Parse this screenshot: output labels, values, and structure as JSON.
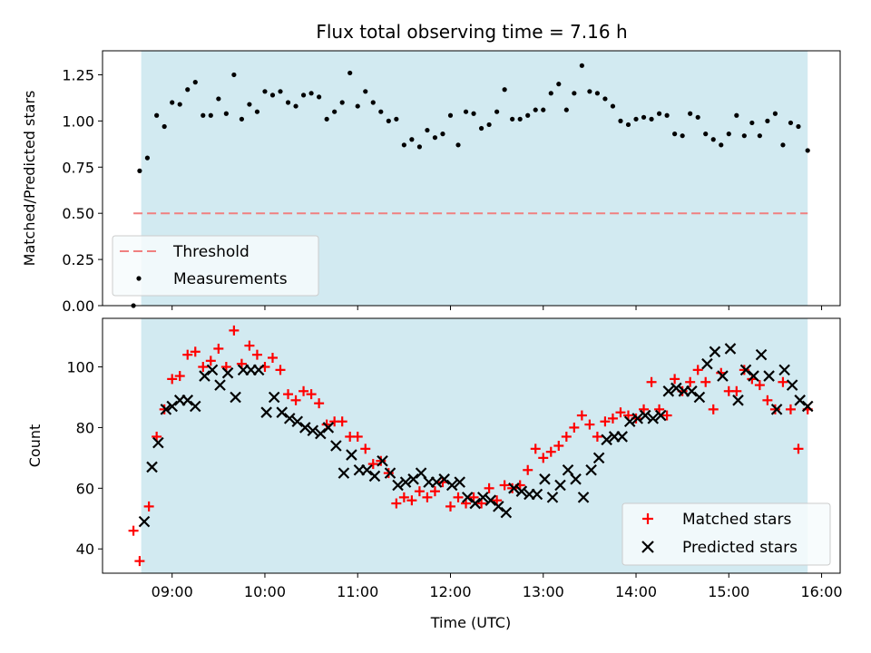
{
  "title": "Flux total observing time = 7.16 h",
  "colors": {
    "span_fill": "#add8e6",
    "threshold": "#f08080",
    "matched": "#ff0000",
    "predicted": "#000000",
    "measurement": "#000000"
  },
  "chart_data": [
    {
      "type": "scatter",
      "ylabel": "Matched/Predicted stars",
      "ylim": [
        0,
        1.38
      ],
      "yticks": [
        0,
        0.25,
        0.5,
        0.75,
        1.0,
        1.25
      ],
      "ytick_labels": [
        "0.00",
        "0.25",
        "0.50",
        "0.75",
        "1.00",
        "1.25"
      ],
      "observing_span": [
        "08:40",
        "15:51"
      ],
      "threshold": {
        "name": "Threshold",
        "value": 0.5,
        "x_start": "08:35",
        "x_end": "15:51"
      },
      "legend": {
        "placement": "lower-left",
        "entries": [
          "Threshold",
          "Measurements"
        ]
      },
      "series": [
        {
          "name": "Measurements",
          "x": [
            "08:35",
            "08:39",
            "08:44",
            "08:50",
            "08:55",
            "09:00",
            "09:05",
            "09:10",
            "09:15",
            "09:20",
            "09:25",
            "09:30",
            "09:35",
            "09:40",
            "09:45",
            "09:50",
            "09:55",
            "10:00",
            "10:05",
            "10:10",
            "10:15",
            "10:20",
            "10:25",
            "10:30",
            "10:35",
            "10:40",
            "10:45",
            "10:50",
            "10:55",
            "11:00",
            "11:05",
            "11:10",
            "11:15",
            "11:20",
            "11:25",
            "11:30",
            "11:35",
            "11:40",
            "11:45",
            "11:50",
            "11:55",
            "12:00",
            "12:05",
            "12:10",
            "12:15",
            "12:20",
            "12:25",
            "12:30",
            "12:35",
            "12:40",
            "12:45",
            "12:50",
            "12:55",
            "13:00",
            "13:05",
            "13:10",
            "13:15",
            "13:20",
            "13:25",
            "13:30",
            "13:35",
            "13:40",
            "13:45",
            "13:50",
            "13:55",
            "14:00",
            "14:05",
            "14:10",
            "14:15",
            "14:20",
            "14:25",
            "14:30",
            "14:35",
            "14:40",
            "14:45",
            "14:50",
            "14:55",
            "15:00",
            "15:05",
            "15:10",
            "15:15",
            "15:20",
            "15:25",
            "15:30",
            "15:35",
            "15:40",
            "15:45",
            "15:51"
          ],
          "y": [
            0.0,
            0.73,
            0.8,
            1.03,
            0.97,
            1.1,
            1.09,
            1.17,
            1.21,
            1.03,
            1.03,
            1.12,
            1.04,
            1.25,
            1.01,
            1.09,
            1.05,
            1.16,
            1.14,
            1.16,
            1.1,
            1.08,
            1.14,
            1.15,
            1.13,
            1.01,
            1.05,
            1.1,
            1.26,
            1.08,
            1.16,
            1.1,
            1.05,
            1.0,
            1.01,
            0.87,
            0.9,
            0.86,
            0.95,
            0.91,
            0.93,
            1.03,
            0.87,
            1.05,
            1.04,
            0.96,
            0.98,
            1.05,
            1.17,
            1.01,
            1.01,
            1.03,
            1.06,
            1.06,
            1.15,
            1.2,
            1.06,
            1.15,
            1.3,
            1.16,
            1.15,
            1.12,
            1.08,
            1.0,
            0.98,
            1.01,
            1.02,
            1.01,
            1.04,
            1.03,
            0.93,
            0.92,
            1.04,
            1.02,
            0.93,
            0.9,
            0.87,
            0.93,
            1.03,
            0.92,
            0.99,
            0.92,
            1.0,
            1.04,
            0.87,
            0.99,
            0.97,
            0.84
          ]
        }
      ]
    },
    {
      "type": "scatter",
      "xlabel": "Time (UTC)",
      "ylabel": "Count",
      "xlim": [
        "08:15",
        "16:12"
      ],
      "ylim": [
        32,
        116
      ],
      "yticks": [
        40,
        60,
        80,
        100
      ],
      "xticks": [
        "09:00",
        "10:00",
        "11:00",
        "12:00",
        "13:00",
        "14:00",
        "15:00",
        "16:00"
      ],
      "observing_span": [
        "08:40",
        "15:51"
      ],
      "legend": {
        "placement": "lower-right",
        "entries": [
          "Matched stars",
          "Predicted stars"
        ]
      },
      "series": [
        {
          "name": "Matched stars",
          "x": [
            "08:35",
            "08:39",
            "08:45",
            "08:50",
            "08:55",
            "09:00",
            "09:05",
            "09:10",
            "09:15",
            "09:20",
            "09:25",
            "09:30",
            "09:35",
            "09:40",
            "09:45",
            "09:50",
            "09:55",
            "10:00",
            "10:05",
            "10:10",
            "10:15",
            "10:20",
            "10:25",
            "10:30",
            "10:35",
            "10:40",
            "10:45",
            "10:50",
            "10:55",
            "11:00",
            "11:05",
            "11:10",
            "11:15",
            "11:20",
            "11:25",
            "11:30",
            "11:35",
            "11:40",
            "11:45",
            "11:50",
            "11:55",
            "12:00",
            "12:05",
            "12:10",
            "12:15",
            "12:20",
            "12:25",
            "12:30",
            "12:35",
            "12:40",
            "12:45",
            "12:50",
            "12:55",
            "13:00",
            "13:05",
            "13:10",
            "13:15",
            "13:20",
            "13:25",
            "13:30",
            "13:35",
            "13:40",
            "13:45",
            "13:50",
            "13:55",
            "14:00",
            "14:05",
            "14:10",
            "14:15",
            "14:20",
            "14:25",
            "14:30",
            "14:35",
            "14:40",
            "14:45",
            "14:50",
            "14:55",
            "15:00",
            "15:05",
            "15:10",
            "15:15",
            "15:20",
            "15:25",
            "15:30",
            "15:35",
            "15:40",
            "15:45",
            "15:51"
          ],
          "y": [
            46,
            36,
            54,
            77,
            86,
            96,
            97,
            104,
            105,
            100,
            102,
            106,
            100,
            112,
            101,
            107,
            104,
            100,
            103,
            99,
            91,
            89,
            92,
            91,
            88,
            81,
            82,
            82,
            77,
            77,
            73,
            68,
            69,
            65,
            55,
            57,
            56,
            59,
            57,
            59,
            62,
            54,
            57,
            55,
            57,
            55,
            60,
            56,
            61,
            60,
            61,
            66,
            73,
            70,
            72,
            74,
            77,
            80,
            84,
            81,
            77,
            82,
            83,
            85,
            84,
            83,
            86,
            95,
            86,
            84,
            96,
            92,
            95,
            99,
            95,
            86,
            98,
            92,
            92,
            99,
            96,
            94,
            89,
            86,
            95,
            86,
            73,
            86
          ]
        },
        {
          "name": "Predicted stars",
          "x": [
            "08:42",
            "08:47",
            "08:51",
            "08:56",
            "09:00",
            "09:05",
            "09:10",
            "09:15",
            "09:21",
            "09:26",
            "09:31",
            "09:36",
            "09:41",
            "09:46",
            "09:51",
            "09:56",
            "10:01",
            "10:06",
            "10:11",
            "10:16",
            "10:21",
            "10:26",
            "10:31",
            "10:36",
            "10:41",
            "10:46",
            "10:51",
            "10:56",
            "11:01",
            "11:06",
            "11:11",
            "11:16",
            "11:21",
            "11:26",
            "11:31",
            "11:36",
            "11:41",
            "11:46",
            "11:51",
            "11:56",
            "12:01",
            "12:06",
            "12:11",
            "12:16",
            "12:21",
            "12:26",
            "12:31",
            "12:36",
            "12:41",
            "12:46",
            "12:51",
            "12:56",
            "13:01",
            "13:06",
            "13:11",
            "13:16",
            "13:21",
            "13:26",
            "13:31",
            "13:36",
            "13:41",
            "13:46",
            "13:51",
            "13:56",
            "14:01",
            "14:06",
            "14:11",
            "14:16",
            "14:21",
            "14:26",
            "14:31",
            "14:36",
            "14:41",
            "14:46",
            "14:51",
            "14:56",
            "15:01",
            "15:06",
            "15:11",
            "15:16",
            "15:21",
            "15:26",
            "15:31",
            "15:36",
            "15:41",
            "15:46",
            "15:51"
          ],
          "y": [
            49,
            67,
            75,
            86,
            87,
            89,
            89,
            87,
            97,
            99,
            94,
            98,
            90,
            99,
            99,
            99,
            85,
            90,
            85,
            83,
            82,
            80,
            79,
            78,
            80,
            74,
            65,
            71,
            66,
            66,
            64,
            69,
            65,
            61,
            62,
            63,
            65,
            62,
            62,
            63,
            61,
            62,
            57,
            55,
            57,
            56,
            54,
            52,
            60,
            59,
            58,
            58,
            63,
            57,
            61,
            66,
            63,
            57,
            66,
            70,
            76,
            77,
            77,
            82,
            83,
            84,
            83,
            84,
            92,
            93,
            92,
            92,
            90,
            101,
            105,
            97,
            106,
            89,
            99,
            97,
            104,
            97,
            86,
            99,
            94,
            89,
            87
          ]
        }
      ]
    }
  ]
}
